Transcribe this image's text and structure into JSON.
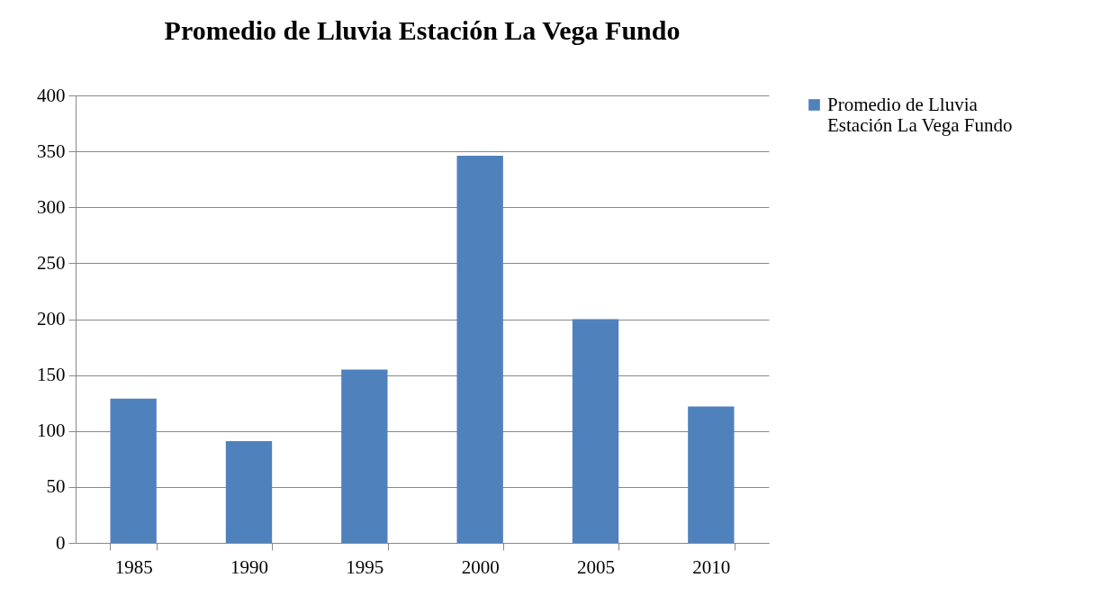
{
  "chart_data": {
    "type": "bar",
    "title": "Promedio de Lluvia Estación La Vega Fundo",
    "categories": [
      "1985",
      "1990",
      "1995",
      "2000",
      "2005",
      "2010"
    ],
    "series": [
      {
        "name": "Promedio de Lluvia Estación La Vega Fundo",
        "color": "#4f81bd",
        "values": [
          129,
          91,
          155,
          346,
          200,
          122
        ]
      }
    ],
    "ylim": [
      0,
      400
    ],
    "yticks": [
      0,
      50,
      100,
      150,
      200,
      250,
      300,
      350,
      400
    ],
    "grid": "y",
    "legend": "right"
  }
}
